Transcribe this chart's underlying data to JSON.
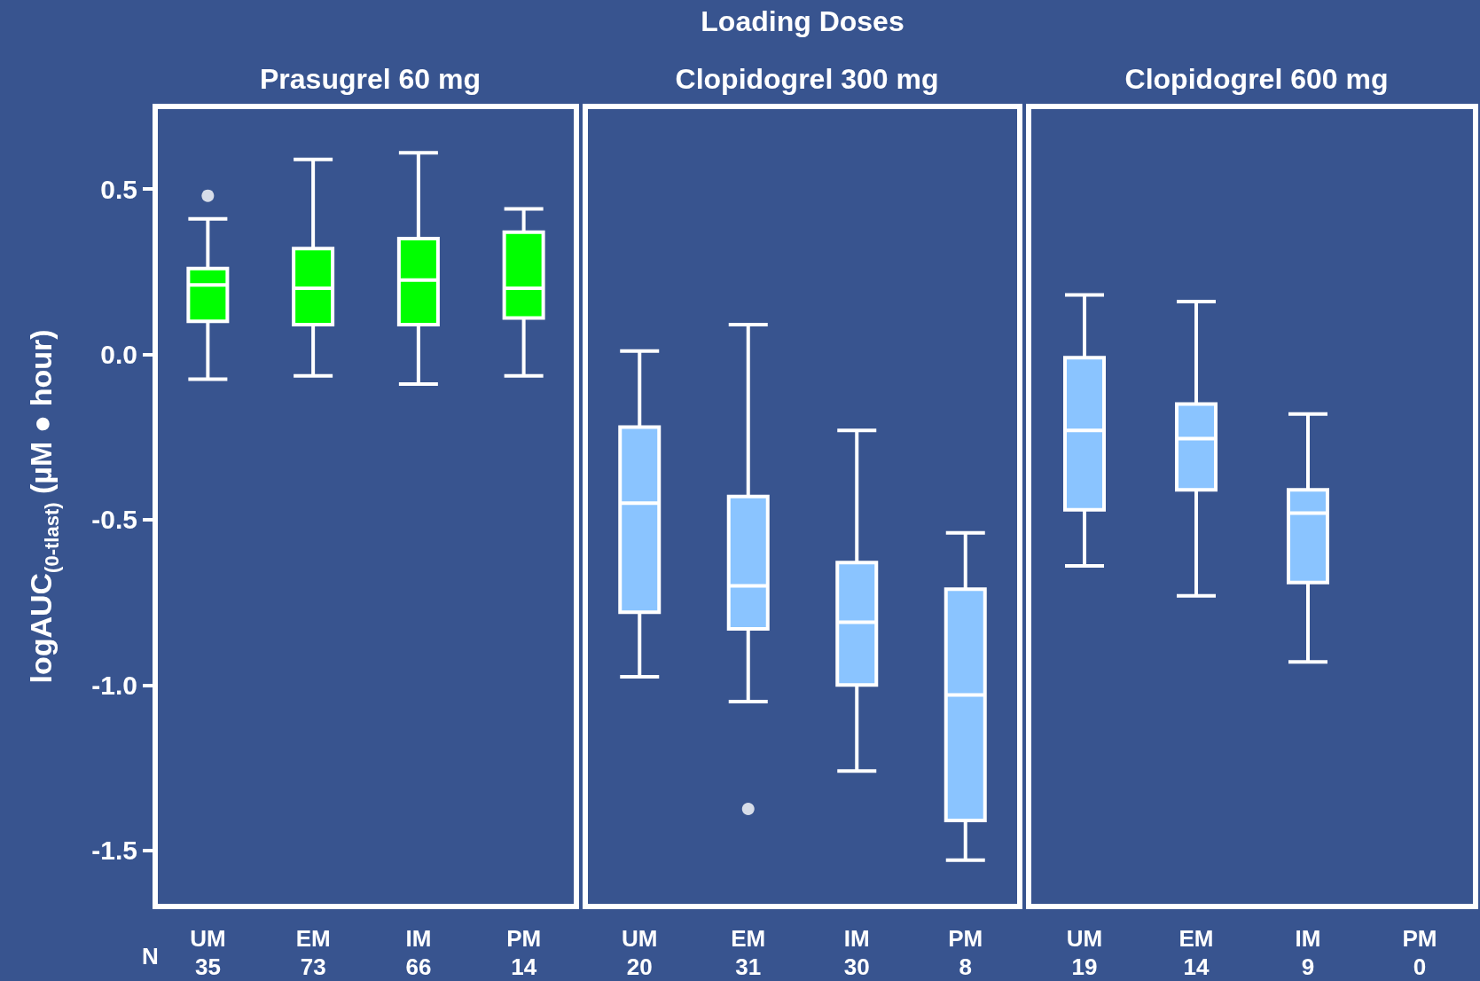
{
  "chart_data": [
    {
      "type": "box",
      "title": "Prasugrel 60 mg",
      "ylabel": "logAUC$_{(0-tlast)}$ (µM ● hour)",
      "annotations": [
        "N"
      ],
      "categories": [
        "UM\n35",
        "EM\n73",
        "IM\n66",
        "PM\n14"
      ],
      "color": "#00ff00",
      "ylim": [
        -1.67,
        0.75
      ],
      "yticks": [
        {
          "value": -1.5,
          "label": "-1.5"
        },
        {
          "value": -1,
          "label": "-1.0"
        },
        {
          "value": -0.5,
          "label": "-0.5"
        },
        {
          "value": 0,
          "label": "0.0"
        },
        {
          "value": 0.5,
          "label": "0.5"
        }
      ],
      "grid": false,
      "boxes": [
        {
          "low": -0.075,
          "q1": 0.1,
          "median": 0.21,
          "q3": 0.26,
          "high": 0.41,
          "outliers": [
            0.48
          ]
        },
        {
          "low": -0.065,
          "q1": 0.09,
          "median": 0.2,
          "q3": 0.32,
          "high": 0.59
        },
        {
          "low": -0.09,
          "q1": 0.09,
          "median": 0.225,
          "q3": 0.35,
          "high": 0.61
        },
        {
          "low": -0.065,
          "q1": 0.11,
          "median": 0.2,
          "q3": 0.37,
          "high": 0.44
        }
      ]
    },
    {
      "type": "box",
      "title": "Clopidogrel 300 mg",
      "annotations": [
        "Loading Doses"
      ],
      "categories": [
        "UM\n20",
        "EM\n31",
        "IM\n30",
        "PM\n8"
      ],
      "color": "#8ac4ff",
      "ylim": [
        -1.67,
        0.75
      ],
      "tick_labels": "x",
      "grid": false,
      "boxes": [
        {
          "low": -0.975,
          "q1": -0.78,
          "median": -0.45,
          "q3": -0.22,
          "high": 0.01
        },
        {
          "low": -1.05,
          "q1": -0.83,
          "median": -0.7,
          "q3": -0.43,
          "high": 0.09,
          "outliers": [
            -1.375
          ]
        },
        {
          "low": -1.26,
          "q1": -1.0,
          "median": -0.81,
          "q3": -0.63,
          "high": -0.23
        },
        {
          "low": -1.53,
          "q1": -1.41,
          "median": -1.03,
          "q3": -0.71,
          "high": -0.54
        }
      ]
    },
    {
      "type": "box",
      "title": "Clopidogrel 600 mg",
      "categories": [
        "UM\n19",
        "EM\n14",
        "IM\n9",
        "PM\n0"
      ],
      "color": "#8ac4ff",
      "ylim": [
        -1.67,
        0.75
      ],
      "tick_labels": "x",
      "grid": false,
      "boxes": [
        {
          "low": -0.64,
          "q1": -0.47,
          "median": -0.23,
          "q3": -0.01,
          "high": 0.18
        },
        {
          "low": -0.73,
          "q1": -0.41,
          "median": -0.255,
          "q3": -0.15,
          "high": 0.16
        },
        {
          "low": -0.93,
          "q1": -0.69,
          "median": -0.48,
          "q3": -0.41,
          "high": -0.18
        },
        null
      ]
    }
  ]
}
